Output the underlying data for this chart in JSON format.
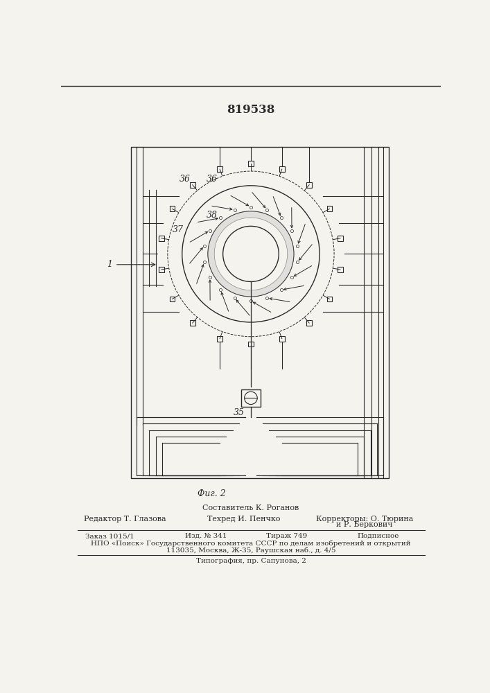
{
  "title": "819538",
  "fig_label": "Фиг. 2",
  "bg_color": "#f5f3ee",
  "line_color": "#2a2a2a",
  "sestavitel": "Составитель К. Роганов",
  "redaktor": "Редактор Т. Глазова",
  "tehred": "Техред И. Пенчко",
  "korrektory": "Корректоры: О. Тюрина",
  "korrektory2": "и Р. Беркович",
  "zakaz": "Заказ 1015/1",
  "izd": "Изд. № 341",
  "tirazh": "Тираж 749",
  "podpisnoe": "Подписное",
  "npo_line": "НПО «Поиск» Государственного комитета СССР по делам изобретений и открытий",
  "address": "113035, Москва, Ж-35, Раушская наб., д. 4/5",
  "tipografia": "Типография, пр. Сапунова, 2",
  "label_36a": "36",
  "label_36b": "36",
  "label_37": "37",
  "label_38": "38",
  "label_1": "1",
  "label_35": "35"
}
